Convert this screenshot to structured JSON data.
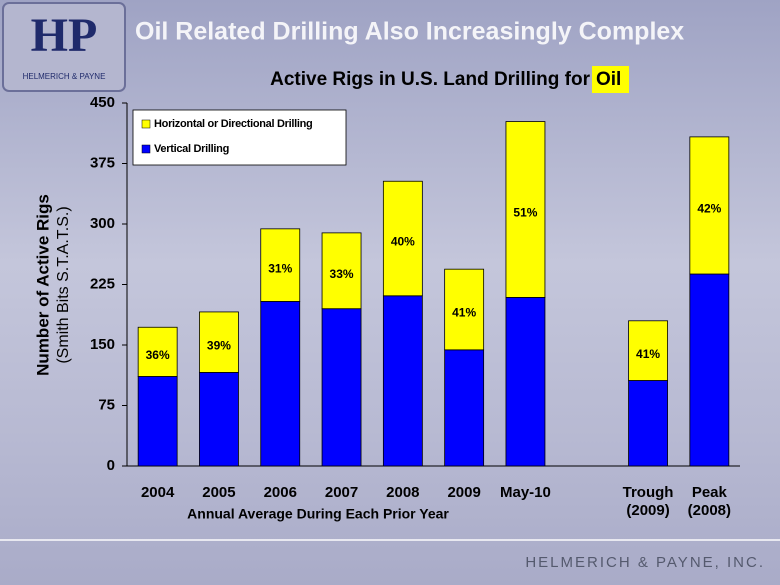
{
  "slide": {
    "title": "Oil Related Drilling Also Increasingly Complex",
    "logo": "HP",
    "logo_caption": "HELMERICH & PAYNE",
    "footer": "HELMERICH & PAYNE, INC."
  },
  "chart_data": {
    "type": "stacked_bar",
    "title": "Active Rigs in U.S. Land Drilling for",
    "title_highlight": "Oil",
    "y_label": "Number of Active Rigs",
    "y_sublabel": "(Smith Bits S.T.A.T.S.)",
    "x_label": "Annual Average During Each Prior Year",
    "categories": [
      "2004",
      "2005",
      "2006",
      "2007",
      "2008",
      "2009",
      "May-10",
      null,
      "Trough (2009)",
      "Peak (2008)"
    ],
    "series": [
      {
        "name": "Vertical Drilling",
        "color": "#0000ff",
        "values": [
          111,
          116,
          204,
          195,
          211,
          144,
          209,
          null,
          106,
          238
        ]
      },
      {
        "name": "Horizontal or Directional Drilling",
        "color": "#ffff00",
        "values": [
          61,
          75,
          90,
          94,
          142,
          100,
          218,
          null,
          74,
          170
        ]
      }
    ],
    "shares": {
      "values": [
        36,
        39,
        31,
        33,
        40,
        41,
        51,
        null,
        41,
        42
      ],
      "value_labels": [
        "36%",
        "39%",
        "31%",
        "33%",
        "40%",
        "41%",
        "51%",
        null,
        "41%",
        "42%"
      ]
    },
    "ylim": [
      0,
      450
    ],
    "yticks": [
      0,
      75,
      150,
      225,
      300,
      375,
      450
    ],
    "legend": "upper left"
  }
}
